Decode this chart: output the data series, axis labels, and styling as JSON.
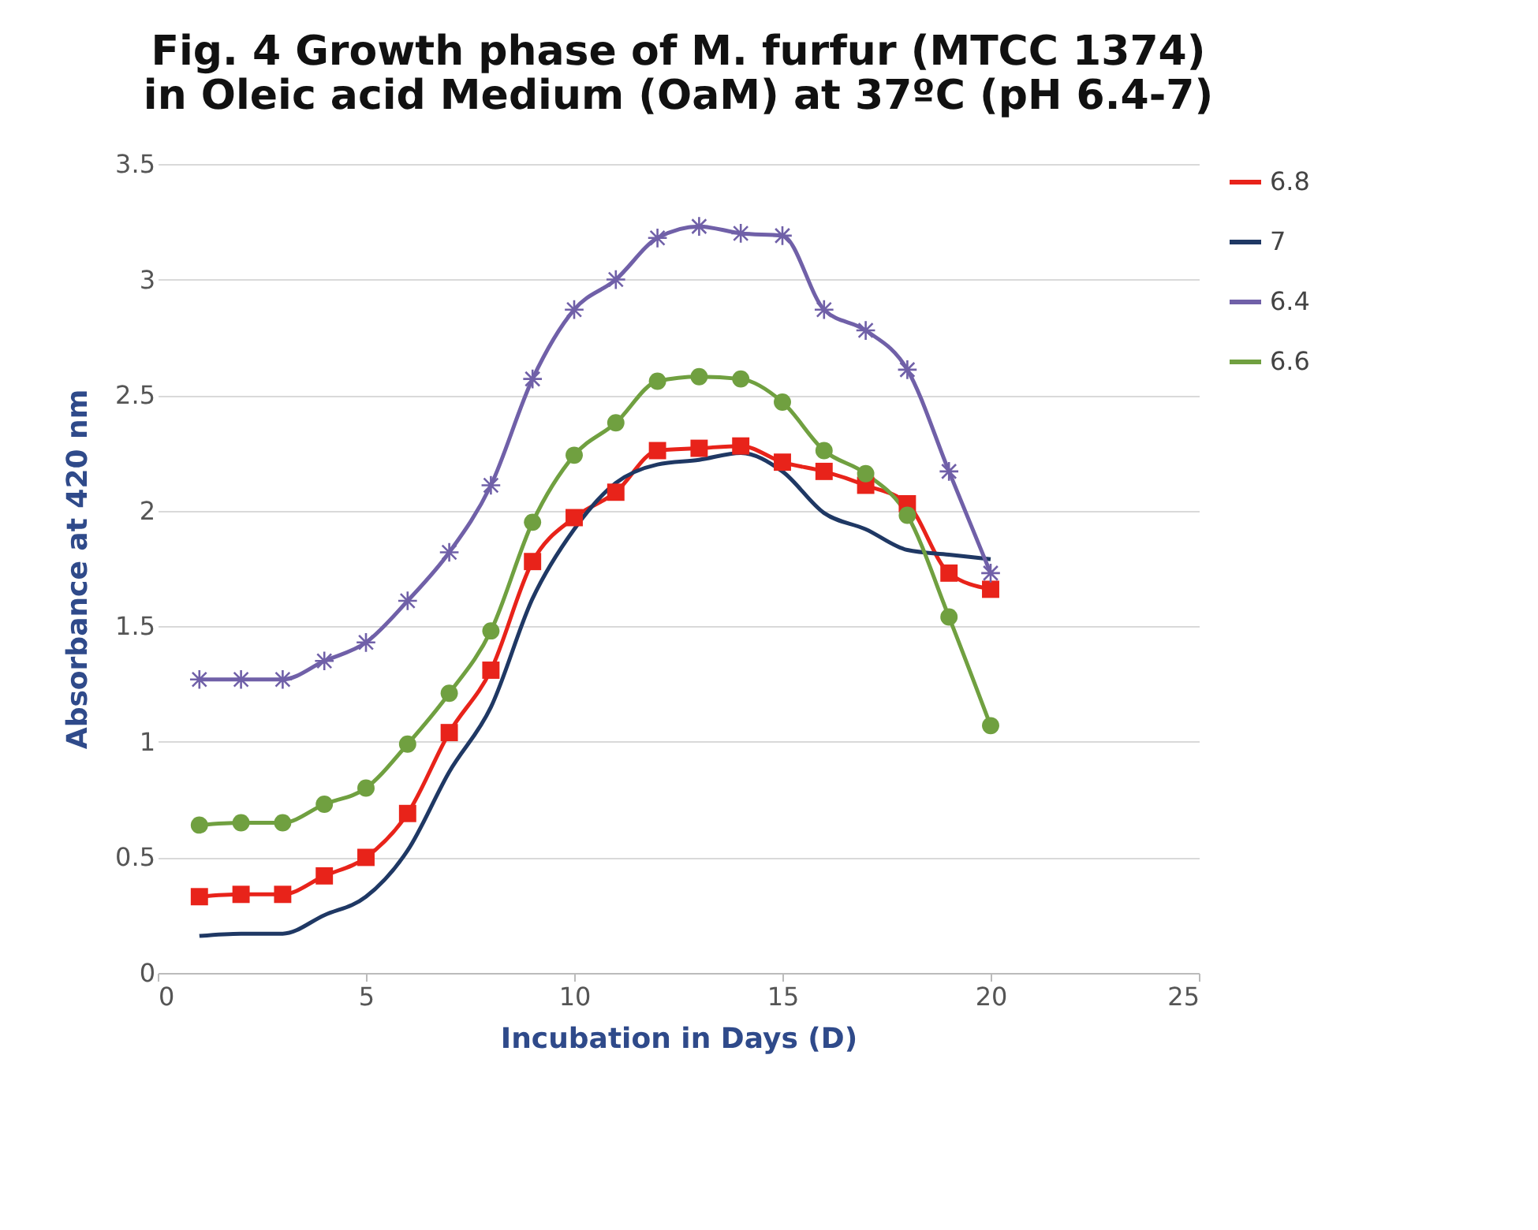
{
  "chart_data": {
    "type": "line",
    "title": [
      "Fig. 4 Growth phase of M. furfur (MTCC 1374)",
      "in Oleic acid Medium (OaM) at 37ºC (pH 6.4-7)"
    ],
    "xlabel": "Incubation in Days (D)",
    "ylabel": "Absorbance at 420 nm",
    "x": [
      1,
      2,
      3,
      4,
      5,
      6,
      7,
      8,
      9,
      10,
      11,
      12,
      13,
      14,
      15,
      16,
      17,
      18,
      19,
      20
    ],
    "series": [
      {
        "name": "6.8",
        "color": "#e8231a",
        "marker": "square",
        "values": [
          0.33,
          0.34,
          0.34,
          0.42,
          0.5,
          0.69,
          1.04,
          1.31,
          1.78,
          1.97,
          2.08,
          2.26,
          2.27,
          2.28,
          2.21,
          2.17,
          2.11,
          2.03,
          1.73,
          1.66
        ]
      },
      {
        "name": "7",
        "color": "#1f3864",
        "marker": "none",
        "values": [
          0.16,
          0.17,
          0.17,
          0.25,
          0.33,
          0.53,
          0.87,
          1.15,
          1.62,
          1.92,
          2.12,
          2.2,
          2.22,
          2.25,
          2.17,
          1.99,
          1.92,
          1.83,
          1.81,
          1.79
        ]
      },
      {
        "name": "6.4",
        "color": "#7060a8",
        "marker": "cross",
        "values": [
          1.27,
          1.27,
          1.27,
          1.35,
          1.43,
          1.61,
          1.82,
          2.11,
          2.57,
          2.87,
          3.0,
          3.18,
          3.23,
          3.2,
          3.19,
          2.87,
          2.78,
          2.61,
          2.17,
          1.73
        ]
      },
      {
        "name": "6.6",
        "color": "#70a040",
        "marker": "circle",
        "values": [
          0.64,
          0.65,
          0.65,
          0.73,
          0.8,
          0.99,
          1.21,
          1.48,
          1.95,
          2.24,
          2.38,
          2.56,
          2.58,
          2.57,
          2.47,
          2.26,
          2.16,
          1.98,
          1.54,
          1.07
        ]
      }
    ],
    "xlim": [
      0,
      25
    ],
    "xticks": [
      0,
      5,
      10,
      15,
      20,
      25
    ],
    "ylim": [
      0,
      3.5
    ],
    "yticks": [
      0,
      0.5,
      1,
      1.5,
      2,
      2.5,
      3,
      3.5
    ],
    "grid": "y",
    "legend": "right"
  }
}
